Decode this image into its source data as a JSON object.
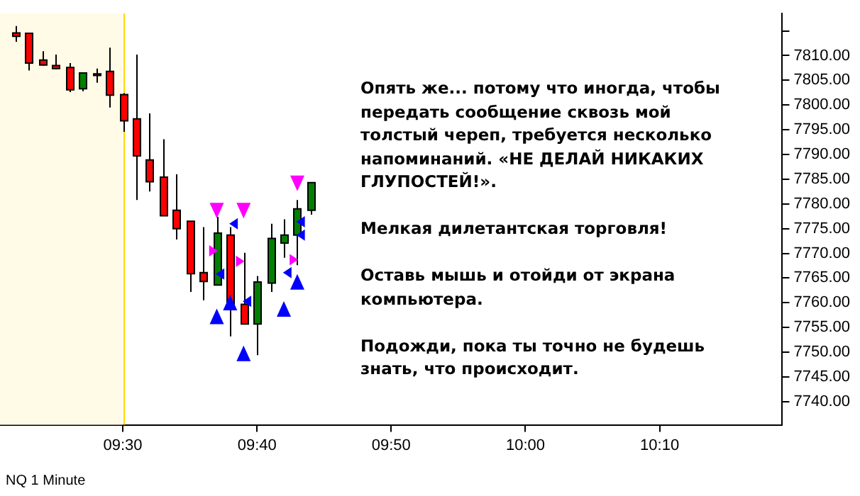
{
  "chart_data": {
    "type": "candlestick",
    "x": [
      9.3667,
      9.3833,
      9.4,
      9.4167,
      9.4333,
      9.45,
      9.4667,
      9.4833,
      9.5,
      9.5167,
      9.5333,
      9.55,
      9.5667,
      9.5833,
      9.6,
      9.6167,
      9.6333,
      9.65,
      9.6667,
      9.6833,
      9.7,
      9.7167,
      9.7333
    ],
    "ohlc": [
      [
        7814.6,
        7816.0,
        7812.8,
        7813.9
      ],
      [
        7814.5,
        7814.6,
        7807.0,
        7808.5
      ],
      [
        7809.1,
        7810.9,
        7808.0,
        7808.1
      ],
      [
        7808.0,
        7810.2,
        7807.2,
        7807.4
      ],
      [
        7807.6,
        7808.5,
        7802.6,
        7803.1
      ],
      [
        7803.3,
        7806.5,
        7802.8,
        7806.5
      ],
      [
        7806.3,
        7807.4,
        7804.5,
        7806.0
      ],
      [
        7806.8,
        7811.6,
        7799.5,
        7802.0
      ],
      [
        7802.1,
        7802.4,
        7794.6,
        7796.8
      ],
      [
        7797.2,
        7810.2,
        7780.8,
        7789.7
      ],
      [
        7788.9,
        7798.3,
        7782.5,
        7784.5
      ],
      [
        7785.4,
        7793.1,
        7777.6,
        7777.6
      ],
      [
        7778.7,
        7786.0,
        7772.8,
        7775.0
      ],
      [
        7776.5,
        7776.5,
        7762.2,
        7765.9
      ],
      [
        7766.1,
        7775.3,
        7760.5,
        7764.3
      ],
      [
        7763.6,
        7777.4,
        7763.6,
        7774.1
      ],
      [
        7773.7,
        7775.3,
        7753.2,
        7759.0
      ],
      [
        7759.7,
        7770.1,
        7755.7,
        7755.7
      ],
      [
        7755.7,
        7765.4,
        7749.4,
        7764.2
      ],
      [
        7764.0,
        7776.0,
        7762.2,
        7773.0
      ],
      [
        7772.1,
        7776.9,
        7769.1,
        7773.7
      ],
      [
        7773.7,
        7780.8,
        7767.6,
        7779.0
      ],
      [
        7778.7,
        7784.3,
        7777.8,
        7784.3
      ]
    ],
    "colors": [
      "#ff0000",
      "#ff0000",
      "#ff0000",
      "#ff0000",
      "#ff0000",
      "#008000",
      "#ff0000",
      "#ff0000",
      "#ff0000",
      "#ff0000",
      "#ff0000",
      "#ff0000",
      "#ff0000",
      "#ff0000",
      "#ff0000",
      "#008000",
      "#ff0000",
      "#ff0000",
      "#008000",
      "#008000",
      "#008000",
      "#008000",
      "#008000"
    ],
    "series": [
      {
        "type": "scatter",
        "marker": "triangle-up",
        "color": "#0000ff",
        "x": [
          9.6167,
          9.6333,
          9.65,
          9.7,
          9.7167
        ],
        "values": [
          7757.1,
          7759.9,
          7749.6,
          7758.6,
          7764.1
        ]
      },
      {
        "type": "scatter",
        "marker": "triangle-down",
        "color": "#ff00ff",
        "x": [
          9.6167,
          9.65,
          9.7167
        ],
        "values": [
          7778.8,
          7778.8,
          7784.3
        ]
      },
      {
        "type": "scatter",
        "marker": "triangle-right",
        "color": "#ff00ff",
        "x": [
          9.6125,
          9.6458,
          9.7125
        ],
        "values": [
          7770.5,
          7768.4,
          7768.7
        ]
      },
      {
        "type": "scatter",
        "marker": "triangle-left",
        "color": "#0000ff",
        "x": [
          9.6208,
          9.6375,
          9.6542,
          9.7042,
          9.7208,
          9.7208
        ],
        "values": [
          7765.8,
          7776.0,
          7760.3,
          7766.1,
          7776.4,
          7773.7
        ]
      }
    ],
    "xlim": [
      9.3475,
      10.319
    ],
    "xticks": [
      {
        "value": 9.5,
        "label": "09:30"
      },
      {
        "value": 9.6667,
        "label": "09:40"
      },
      {
        "value": 9.8333,
        "label": "09:50"
      },
      {
        "value": 10,
        "label": "10:00"
      },
      {
        "value": 10.1667,
        "label": "10:10"
      }
    ],
    "ylim": [
      7735.3,
      7818.5
    ],
    "yticks": [
      {
        "value": 7740,
        "label": "7740.00"
      },
      {
        "value": 7745,
        "label": "7745.00"
      },
      {
        "value": 7750,
        "label": "7750.00"
      },
      {
        "value": 7755,
        "label": "7755.00"
      },
      {
        "value": 7760,
        "label": "7760.00"
      },
      {
        "value": 7765,
        "label": "7765.00"
      },
      {
        "value": 7770,
        "label": "7770.00"
      },
      {
        "value": 7775,
        "label": "7775.00"
      },
      {
        "value": 7780,
        "label": "7780.00"
      },
      {
        "value": 7785,
        "label": "7785.00"
      },
      {
        "value": 7790,
        "label": "7790.00"
      },
      {
        "value": 7795,
        "label": "7795.00"
      },
      {
        "value": 7800,
        "label": "7800.00"
      },
      {
        "value": 7805,
        "label": "7805.00"
      },
      {
        "value": 7810,
        "label": "7810.00"
      },
      {
        "value": 7815,
        "label": null
      }
    ],
    "bands": [
      {
        "axis": "x",
        "from": 9.3475,
        "to": 9.5,
        "color": "#fffbe6"
      }
    ],
    "ref_lines": [
      {
        "axis": "x",
        "value": 9.5,
        "color": "#ffd700"
      }
    ],
    "annotations": [
      "Опять же... потому что иногда, чтобы передать сообщение сквозь мой толстый череп, требуется несколько напоминаний. «НЕ ДЕЛАЙ НИКАКИХ ГЛУПОСТЕЙ!».",
      "Мелкая дилетантская торговля!",
      "Оставь мышь и отойди от экрана компьютера.",
      "Подожди, пока ты точно не будешь знать, что происходит.",
      "NQ 1 Minute"
    ],
    "grid": false,
    "legend": false
  }
}
